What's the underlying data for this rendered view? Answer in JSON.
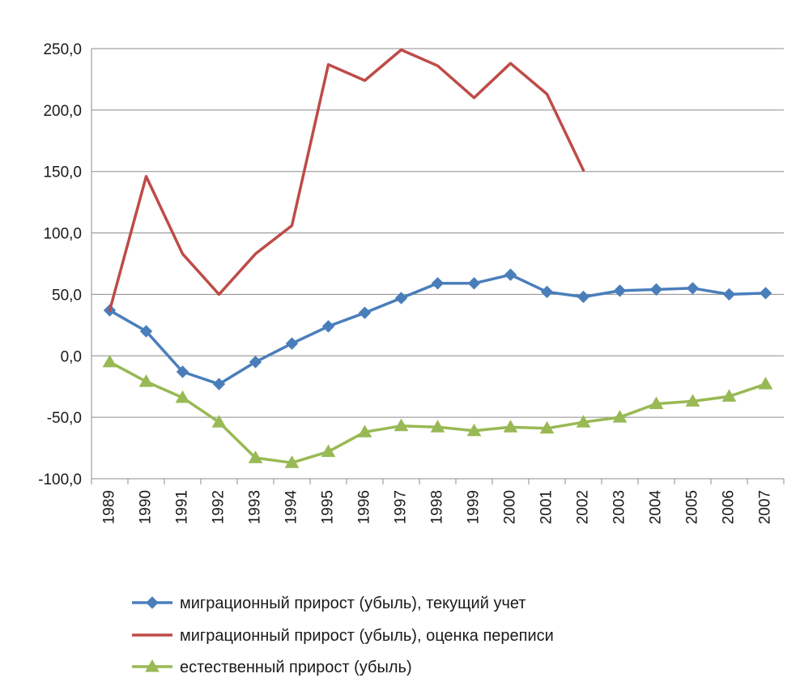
{
  "chart_data": {
    "type": "line",
    "title": "",
    "xlabel": "",
    "ylabel": "",
    "ylim": [
      -100,
      250
    ],
    "y_ticks": [
      250,
      200,
      150,
      100,
      50,
      0,
      -50,
      -100
    ],
    "y_tick_labels": [
      "250,0",
      "200,0",
      "150,0",
      "100,0",
      "50,0",
      "0,0",
      "-50,0",
      "-100,0"
    ],
    "grid": true,
    "legend_position": "bottom",
    "categories": [
      "1989",
      "1990",
      "1991",
      "1992",
      "1993",
      "1994",
      "1995",
      "1996",
      "1997",
      "1998",
      "1999",
      "2000",
      "2001",
      "2002",
      "2003",
      "2004",
      "2005",
      "2006",
      "2007"
    ],
    "series": [
      {
        "name": "миграционный прирост (убыль), текущий учет",
        "color": "#4a7ebb",
        "marker": "diamond",
        "values": [
          37,
          20,
          -13,
          -23,
          -5,
          10,
          24,
          35,
          47,
          59,
          59,
          66,
          52,
          48,
          53,
          54,
          55,
          50,
          51
        ]
      },
      {
        "name": "миграционный прирост (убыль), оценка переписи",
        "color": "#be4b48",
        "marker": "none",
        "values": [
          37,
          146,
          83,
          50,
          83,
          106,
          237,
          224,
          249,
          236,
          210,
          238,
          213,
          151,
          null,
          null,
          null,
          null,
          null
        ]
      },
      {
        "name": "естественный прирост (убыль)",
        "color": "#98b954",
        "marker": "triangle",
        "values": [
          -5,
          -21,
          -34,
          -54,
          -83,
          -87,
          -78,
          -62,
          -57,
          -58,
          -61,
          -58,
          -59,
          -54,
          -50,
          -39,
          -37,
          -33,
          -23
        ]
      }
    ]
  }
}
